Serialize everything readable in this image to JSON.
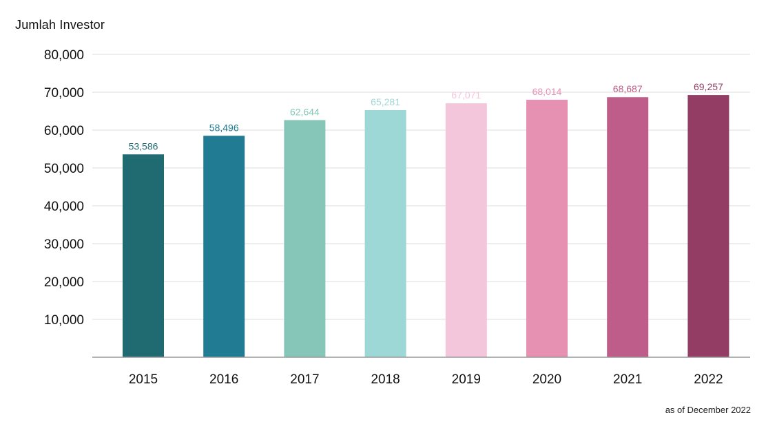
{
  "chart_data": {
    "type": "bar",
    "title": "Jumlah Investor",
    "note": "as of December 2022",
    "categories": [
      "2015",
      "2016",
      "2017",
      "2018",
      "2019",
      "2020",
      "2021",
      "2022"
    ],
    "values": [
      53586,
      58496,
      62644,
      65281,
      67071,
      68014,
      68687,
      69257
    ],
    "data_labels": [
      "53,586",
      "58,496",
      "62,644",
      "65,281",
      "67,071",
      "68,014",
      "68,687",
      "69,257"
    ],
    "bar_colors": [
      "#206a72",
      "#217c93",
      "#86c6b9",
      "#9dd8d7",
      "#f4c6db",
      "#e690b2",
      "#bf5d8a",
      "#933d65"
    ],
    "label_colors": [
      "#206a72",
      "#217c93",
      "#86c6b9",
      "#9dd8d7",
      "#f4c6db",
      "#e690b2",
      "#bf5d8a",
      "#933d65"
    ],
    "yticks": [
      10000,
      20000,
      30000,
      40000,
      50000,
      60000,
      70000,
      80000
    ],
    "ytick_labels": [
      "10,000",
      "20,000",
      "30,000",
      "40,000",
      "50,000",
      "60,000",
      "70,000",
      "80,000"
    ],
    "ylim": [
      0,
      80000
    ],
    "grid": true,
    "legend": "none",
    "gridline_color": "#dddddd",
    "axis_color": "#999999"
  }
}
